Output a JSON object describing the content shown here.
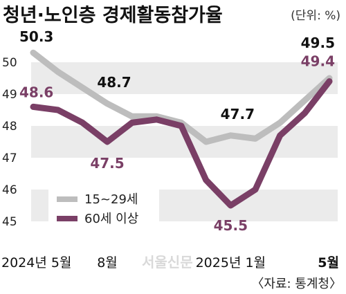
{
  "title": "청년·노인층 경제활동참가율",
  "unit": "(단위: %)",
  "source": "〈자료: 통계청〉",
  "watermark": "서울신문",
  "colors": {
    "youth": "#bdbdbd",
    "senior": "#7a3f66",
    "band": "#ebebeb"
  },
  "chart_data": {
    "type": "line",
    "title": "청년·노인층 경제활동참가율",
    "ylabel": "",
    "ylim": [
      44.7,
      50.2
    ],
    "yticks": [
      45,
      46,
      47,
      48,
      49,
      50
    ],
    "grid": "alternating horizontal bands",
    "legend_position": "lower-left",
    "x": [
      "2024-05",
      "2024-06",
      "2024-07",
      "2024-08",
      "2024-09",
      "2024-10",
      "2024-11",
      "2024-12",
      "2025-01",
      "2025-02",
      "2025-03",
      "2025-04",
      "2025-05"
    ],
    "x_tick_labels": [
      {
        "index": 0,
        "label": "2024년 5월"
      },
      {
        "index": 3,
        "label": "8월"
      },
      {
        "index": 8,
        "label": "2025년 1월"
      },
      {
        "index": 12,
        "label": "5월"
      }
    ],
    "series": [
      {
        "name": "15~29세",
        "color": "#bdbdbd",
        "values": [
          50.3,
          49.7,
          49.2,
          48.7,
          48.3,
          48.3,
          48.1,
          47.5,
          47.7,
          47.6,
          48.1,
          48.8,
          49.5
        ],
        "labels": [
          {
            "index": 0,
            "text": "50.3"
          },
          {
            "index": 3,
            "text": "48.7"
          },
          {
            "index": 8,
            "text": "47.7"
          },
          {
            "index": 12,
            "text": "49.5"
          }
        ]
      },
      {
        "name": "60세 이상",
        "color": "#7a3f66",
        "values": [
          48.6,
          48.5,
          48.1,
          47.5,
          48.1,
          48.2,
          48.0,
          46.3,
          45.5,
          46.0,
          47.7,
          48.4,
          49.4
        ],
        "labels": [
          {
            "index": 0,
            "text": "48.6"
          },
          {
            "index": 3,
            "text": "47.5"
          },
          {
            "index": 8,
            "text": "45.5"
          },
          {
            "index": 12,
            "text": "49.4"
          }
        ]
      }
    ]
  }
}
